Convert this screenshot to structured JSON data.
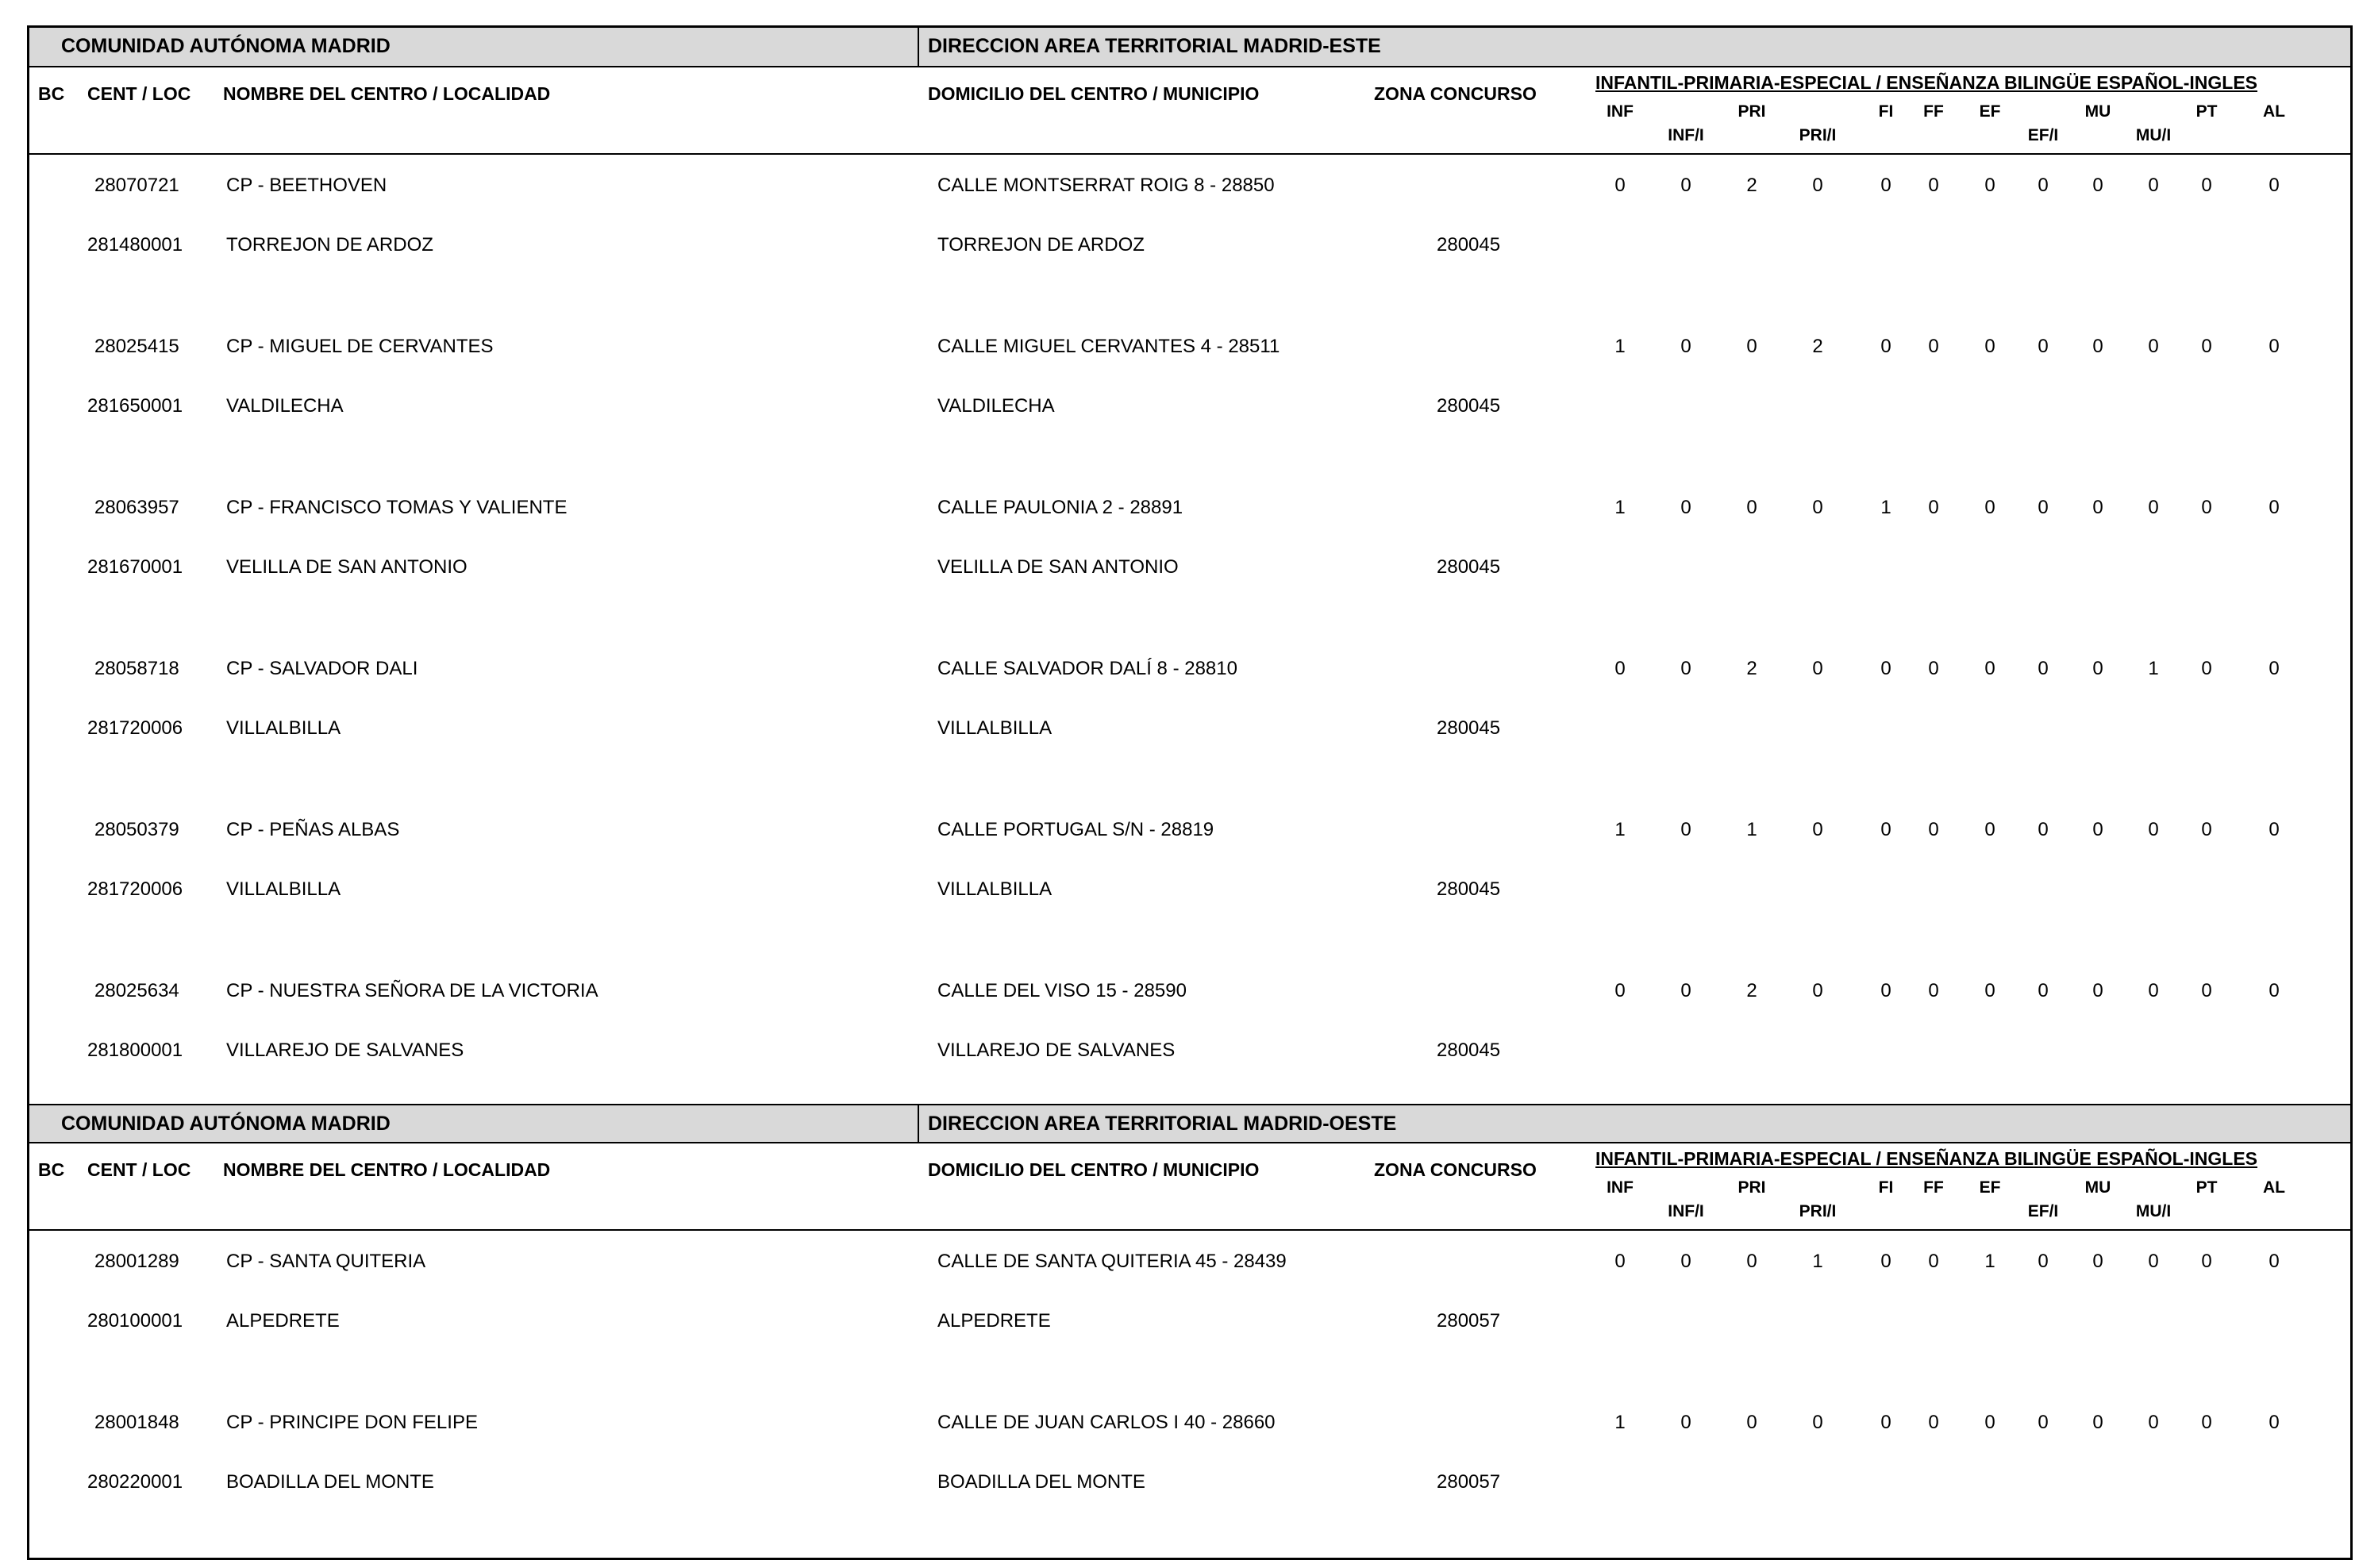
{
  "document": {
    "colors": {
      "section_bar_bg": "#d9d9d9",
      "border": "#000000",
      "text": "#000000",
      "page_bg": "#ffffff"
    },
    "columns": {
      "bc": "BC",
      "cent_loc": "CENT / LOC",
      "nombre": "NOMBRE DEL CENTRO / LOCALIDAD",
      "domicilio": "DOMICILIO DEL CENTRO / MUNICIPIO",
      "zona": "ZONA CONCURSO",
      "group": "INFANTIL-PRIMARIA-ESPECIAL / ENSEÑANZA BILINGÜE ESPAÑOL-INGLES",
      "inf": "INF",
      "inf_i": "INF/I",
      "pri": "PRI",
      "pri_i": "PRI/I",
      "fi": "FI",
      "ff": "FF",
      "ef": "EF",
      "ef_i": "EF/I",
      "mu": "MU",
      "mu_i": "MU/I",
      "pt": "PT",
      "al": "AL"
    },
    "sections": [
      {
        "community": "COMUNIDAD AUTÓNOMA MADRID",
        "direction": "DIRECCION AREA TERRITORIAL MADRID-ESTE",
        "records": [
          {
            "cent": "28070721",
            "name": "CP - BEETHOVEN",
            "address": "CALLE MONTSERRAT ROIG 8 - 28850",
            "loc": "281480001",
            "locality": "TORREJON DE ARDOZ",
            "municipality": "TORREJON DE ARDOZ",
            "zone": "280045",
            "values": [
              "0",
              "0",
              "2",
              "0",
              "0",
              "0",
              "0",
              "0",
              "0",
              "0",
              "0",
              "0"
            ]
          },
          {
            "cent": "28025415",
            "name": "CP - MIGUEL DE CERVANTES",
            "address": "CALLE MIGUEL CERVANTES 4 - 28511",
            "loc": "281650001",
            "locality": "VALDILECHA",
            "municipality": "VALDILECHA",
            "zone": "280045",
            "values": [
              "1",
              "0",
              "0",
              "2",
              "0",
              "0",
              "0",
              "0",
              "0",
              "0",
              "0",
              "0"
            ]
          },
          {
            "cent": "28063957",
            "name": "CP - FRANCISCO TOMAS Y VALIENTE",
            "address": "CALLE PAULONIA 2 - 28891",
            "loc": "281670001",
            "locality": "VELILLA DE SAN ANTONIO",
            "municipality": "VELILLA DE SAN ANTONIO",
            "zone": "280045",
            "values": [
              "1",
              "0",
              "0",
              "0",
              "1",
              "0",
              "0",
              "0",
              "0",
              "0",
              "0",
              "0"
            ]
          },
          {
            "cent": "28058718",
            "name": "CP - SALVADOR DALI",
            "address": "CALLE SALVADOR DALÍ 8 - 28810",
            "loc": "281720006",
            "locality": "VILLALBILLA",
            "municipality": "VILLALBILLA",
            "zone": "280045",
            "values": [
              "0",
              "0",
              "2",
              "0",
              "0",
              "0",
              "0",
              "0",
              "0",
              "1",
              "0",
              "0"
            ]
          },
          {
            "cent": "28050379",
            "name": "CP - PEÑAS ALBAS",
            "address": "CALLE PORTUGAL S/N - 28819",
            "loc": "281720006",
            "locality": "VILLALBILLA",
            "municipality": "VILLALBILLA",
            "zone": "280045",
            "values": [
              "1",
              "0",
              "1",
              "0",
              "0",
              "0",
              "0",
              "0",
              "0",
              "0",
              "0",
              "0"
            ]
          },
          {
            "cent": "28025634",
            "name": "CP - NUESTRA SEÑORA DE LA VICTORIA",
            "address": "CALLE DEL VISO 15 - 28590",
            "loc": "281800001",
            "locality": "VILLAREJO DE SALVANES",
            "municipality": "VILLAREJO DE SALVANES",
            "zone": "280045",
            "values": [
              "0",
              "0",
              "2",
              "0",
              "0",
              "0",
              "0",
              "0",
              "0",
              "0",
              "0",
              "0"
            ]
          }
        ]
      },
      {
        "community": "COMUNIDAD AUTÓNOMA MADRID",
        "direction": "DIRECCION AREA TERRITORIAL MADRID-OESTE",
        "records": [
          {
            "cent": "28001289",
            "name": "CP - SANTA QUITERIA",
            "address": "CALLE DE SANTA QUITERIA 45 - 28439",
            "loc": "280100001",
            "locality": "ALPEDRETE",
            "municipality": "ALPEDRETE",
            "zone": "280057",
            "values": [
              "0",
              "0",
              "0",
              "1",
              "0",
              "0",
              "1",
              "0",
              "0",
              "0",
              "0",
              "0"
            ]
          },
          {
            "cent": "28001848",
            "name": "CP - PRINCIPE DON FELIPE",
            "address": "CALLE DE JUAN CARLOS I 40 - 28660",
            "loc": "280220001",
            "locality": "BOADILLA DEL MONTE",
            "municipality": "BOADILLA DEL MONTE",
            "zone": "280057",
            "values": [
              "1",
              "0",
              "0",
              "0",
              "0",
              "0",
              "0",
              "0",
              "0",
              "0",
              "0",
              "0"
            ]
          }
        ]
      }
    ]
  }
}
